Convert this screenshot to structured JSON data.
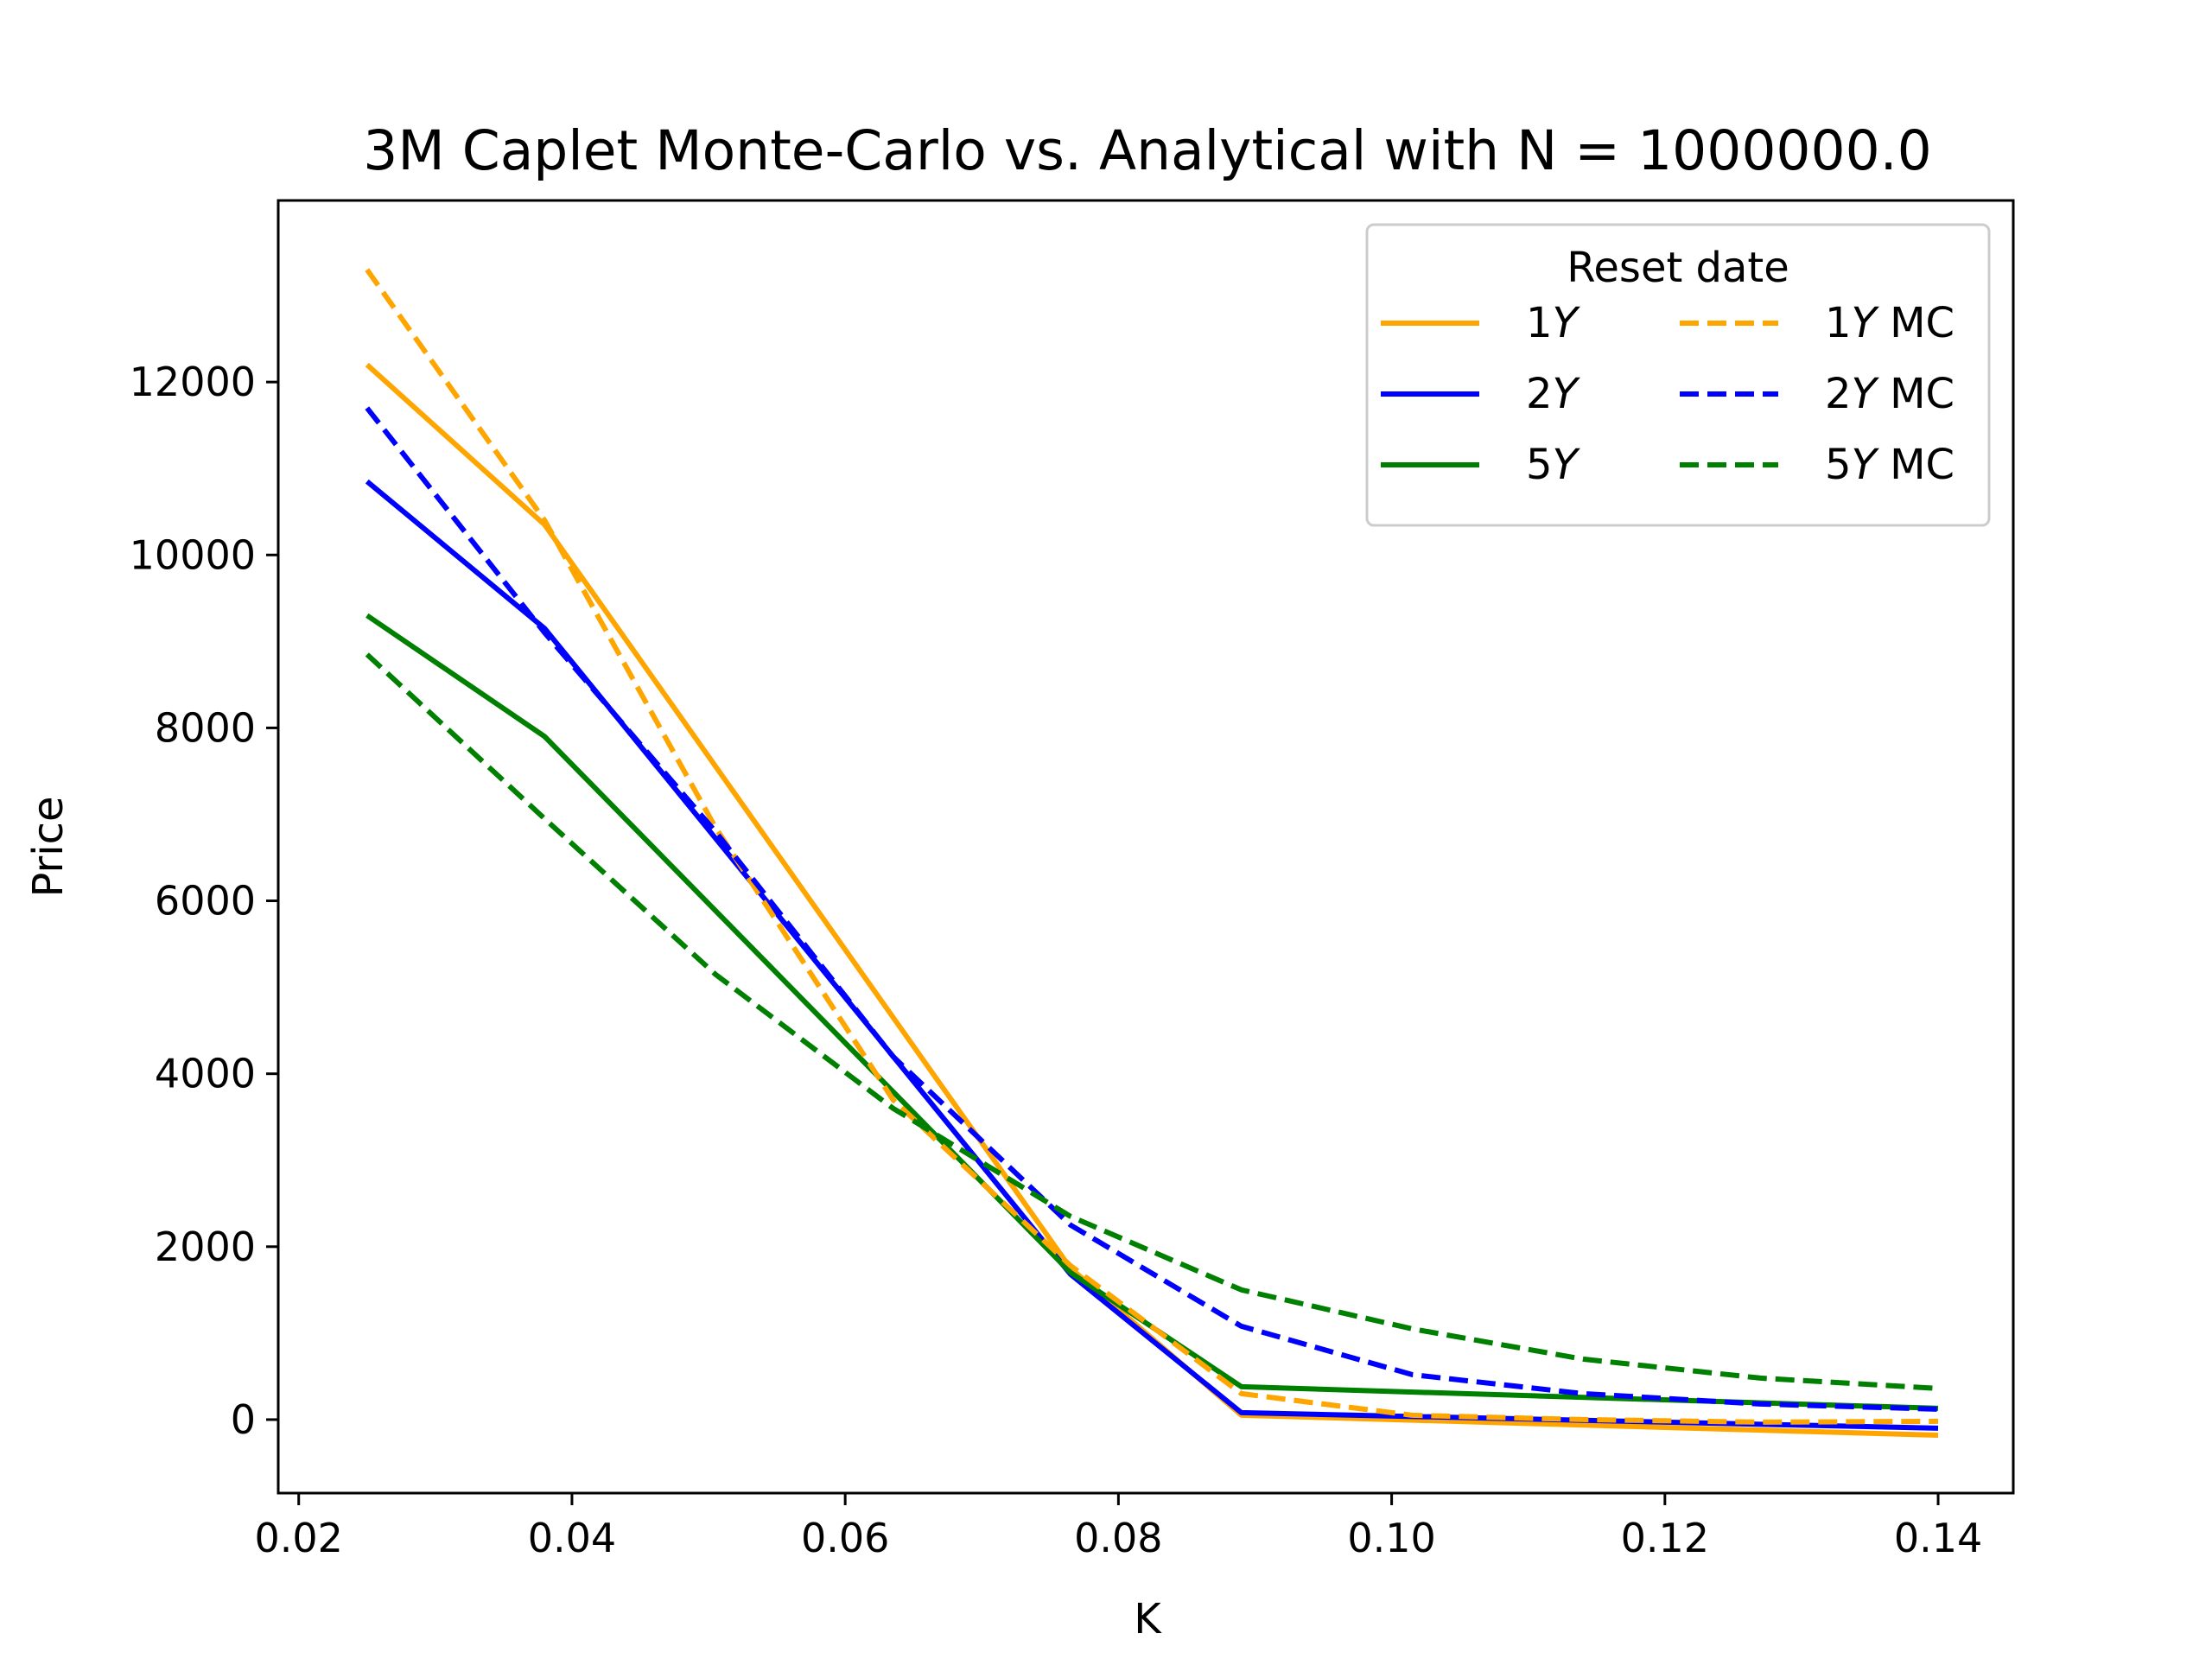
{
  "chart_data": {
    "type": "line",
    "title": "3M Caplet Monte-Carlo vs. Analytical with N = 1000000.0",
    "xlabel": "K",
    "ylabel": "Price",
    "xlim": [
      0.0185,
      0.1455
    ],
    "ylim": [
      -850,
      14100
    ],
    "xticks": [
      0.02,
      0.04,
      0.06,
      0.08,
      0.1,
      0.12,
      0.14
    ],
    "xtick_labels": [
      "0.02",
      "0.04",
      "0.06",
      "0.08",
      "0.10",
      "0.12",
      "0.14"
    ],
    "yticks": [
      0,
      2000,
      4000,
      6000,
      8000,
      10000,
      12000
    ],
    "ytick_labels": [
      "0",
      "2000",
      "4000",
      "6000",
      "8000",
      "10000",
      "12000"
    ],
    "grid": false,
    "legend": {
      "title": "Reset date",
      "placement": "top-right",
      "columns": 2
    },
    "series": [
      {
        "name": "1Y",
        "name_prefix": "1",
        "name_italic": "Y",
        "name_suffix": "",
        "color": "#FFA500",
        "dash": "solid",
        "x": [
          0.025,
          0.038,
          0.0765,
          0.089,
          0.14
        ],
        "y": [
          12200,
          10350,
          1750,
          50,
          -180
        ]
      },
      {
        "name": "2Y",
        "name_prefix": "2",
        "name_italic": "Y",
        "name_suffix": "",
        "color": "#0000FF",
        "dash": "solid",
        "x": [
          0.025,
          0.038,
          0.0765,
          0.089,
          0.14
        ],
        "y": [
          10850,
          9150,
          1680,
          80,
          -100
        ]
      },
      {
        "name": "5Y",
        "name_prefix": "5",
        "name_italic": "Y",
        "name_suffix": "",
        "color": "#008000",
        "dash": "solid",
        "x": [
          0.025,
          0.038,
          0.0765,
          0.089,
          0.14
        ],
        "y": [
          9300,
          7900,
          1700,
          380,
          130
        ]
      },
      {
        "name": "1Y MC",
        "name_prefix": "1",
        "name_italic": "Y",
        "name_suffix": " MC",
        "color": "#FFA500",
        "dash": "dashed",
        "x": [
          0.025,
          0.038,
          0.0505,
          0.0635,
          0.0765,
          0.089,
          0.1015,
          0.114,
          0.127,
          0.14
        ],
        "y": [
          13300,
          10400,
          6850,
          3700,
          1780,
          300,
          50,
          0,
          -30,
          -20
        ]
      },
      {
        "name": "2Y MC",
        "name_prefix": "2",
        "name_italic": "Y",
        "name_suffix": " MC",
        "color": "#0000FF",
        "dash": "dashed",
        "x": [
          0.025,
          0.038,
          0.0505,
          0.0635,
          0.0765,
          0.089,
          0.1015,
          0.114,
          0.127,
          0.14
        ],
        "y": [
          11700,
          9100,
          6800,
          4200,
          2250,
          1080,
          520,
          300,
          180,
          120
        ]
      },
      {
        "name": "5Y MC",
        "name_prefix": "5",
        "name_italic": "Y",
        "name_suffix": " MC",
        "color": "#008000",
        "dash": "dashed",
        "x": [
          0.025,
          0.038,
          0.0505,
          0.0635,
          0.0765,
          0.089,
          0.1015,
          0.114,
          0.127,
          0.14
        ],
        "y": [
          8850,
          6950,
          5150,
          3600,
          2350,
          1500,
          1050,
          700,
          480,
          360
        ]
      }
    ]
  }
}
